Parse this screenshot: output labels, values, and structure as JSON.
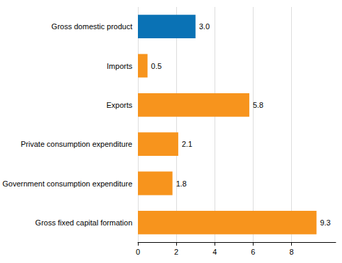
{
  "chart_data": {
    "type": "bar",
    "orientation": "horizontal",
    "categories": [
      "Gross domestic product",
      "Imports",
      "Exports",
      "Private consumption expenditure",
      "Government consumption expenditure",
      "Gross fixed capital formation"
    ],
    "values": [
      3,
      0.5,
      5.8,
      2.1,
      1.8,
      9.3
    ],
    "value_labels": [
      "3.0",
      "0.5",
      "5.8",
      "2.1",
      "1.8",
      "9.3"
    ],
    "colors": [
      "#0a72b5",
      "#f7941d",
      "#f7941d",
      "#f7941d",
      "#f7941d",
      "#f7941d"
    ],
    "xlim": [
      0,
      10.3
    ],
    "xticks": [
      0,
      2,
      4,
      6,
      8
    ],
    "grid": true,
    "data_labels": true
  }
}
